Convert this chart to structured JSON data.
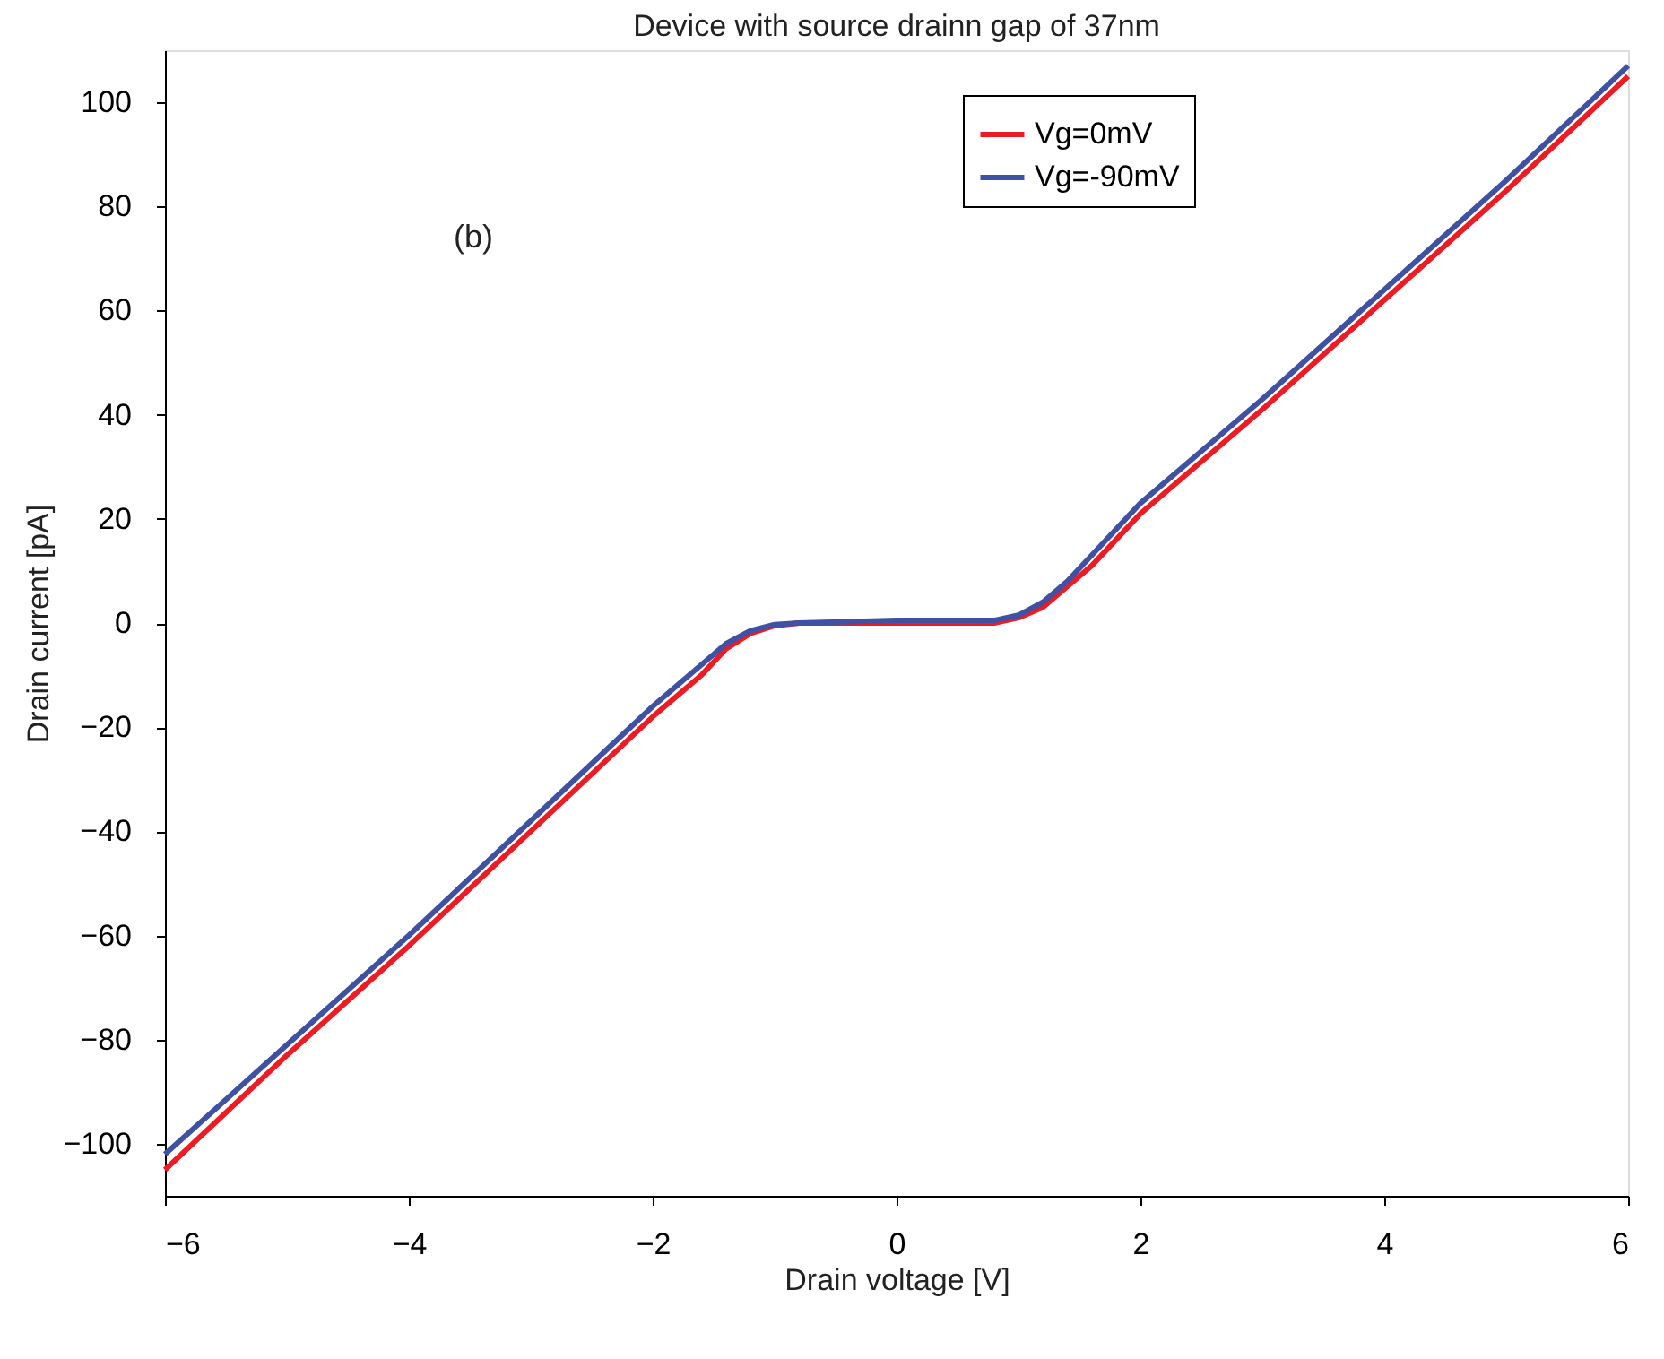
{
  "chart_data": {
    "type": "line",
    "title": "Device with source drainn gap of 37nm",
    "xlabel": "Drain voltage [V]",
    "ylabel": "Drain current [pA]",
    "xlim": [
      -6,
      6
    ],
    "xticks": [
      -6,
      -4,
      -2,
      0,
      2,
      4,
      6
    ],
    "ylim": [
      -110,
      110
    ],
    "yticks": [
      -100,
      -80,
      -60,
      -40,
      -20,
      0,
      20,
      40,
      60,
      80,
      100
    ],
    "grid": false,
    "legend": "top right",
    "annotations": [
      "(b)"
    ],
    "series": [
      {
        "name": "Vg=0mV",
        "color": "#ed1c24",
        "x": [
          -6,
          -5,
          -4,
          -3,
          -2,
          -1.6,
          -1.4,
          -1.2,
          -1,
          -0.8,
          0,
          0.8,
          1,
          1.2,
          1.4,
          1.6,
          2,
          3,
          4,
          5,
          6
        ],
        "values": [
          -105,
          -83,
          -62,
          -40,
          -18,
          -10,
          -5,
          -2,
          -0.5,
          0,
          0,
          0,
          1,
          3,
          7,
          11,
          21,
          41,
          62,
          83,
          105
        ]
      },
      {
        "name": "Vg=-90mV",
        "color": "#3f51a3",
        "x": [
          -6,
          -5,
          -4,
          -3,
          -2,
          -1.6,
          -1.4,
          -1.2,
          -1,
          -0.8,
          0,
          0.8,
          1,
          1.2,
          1.4,
          1.6,
          2,
          3,
          4,
          5,
          6
        ],
        "values": [
          -102,
          -81,
          -60,
          -38,
          -16,
          -8,
          -4,
          -1.5,
          -0.3,
          0,
          0.5,
          0.5,
          1.5,
          4,
          8,
          13,
          23,
          43,
          64,
          85,
          107
        ]
      }
    ]
  }
}
